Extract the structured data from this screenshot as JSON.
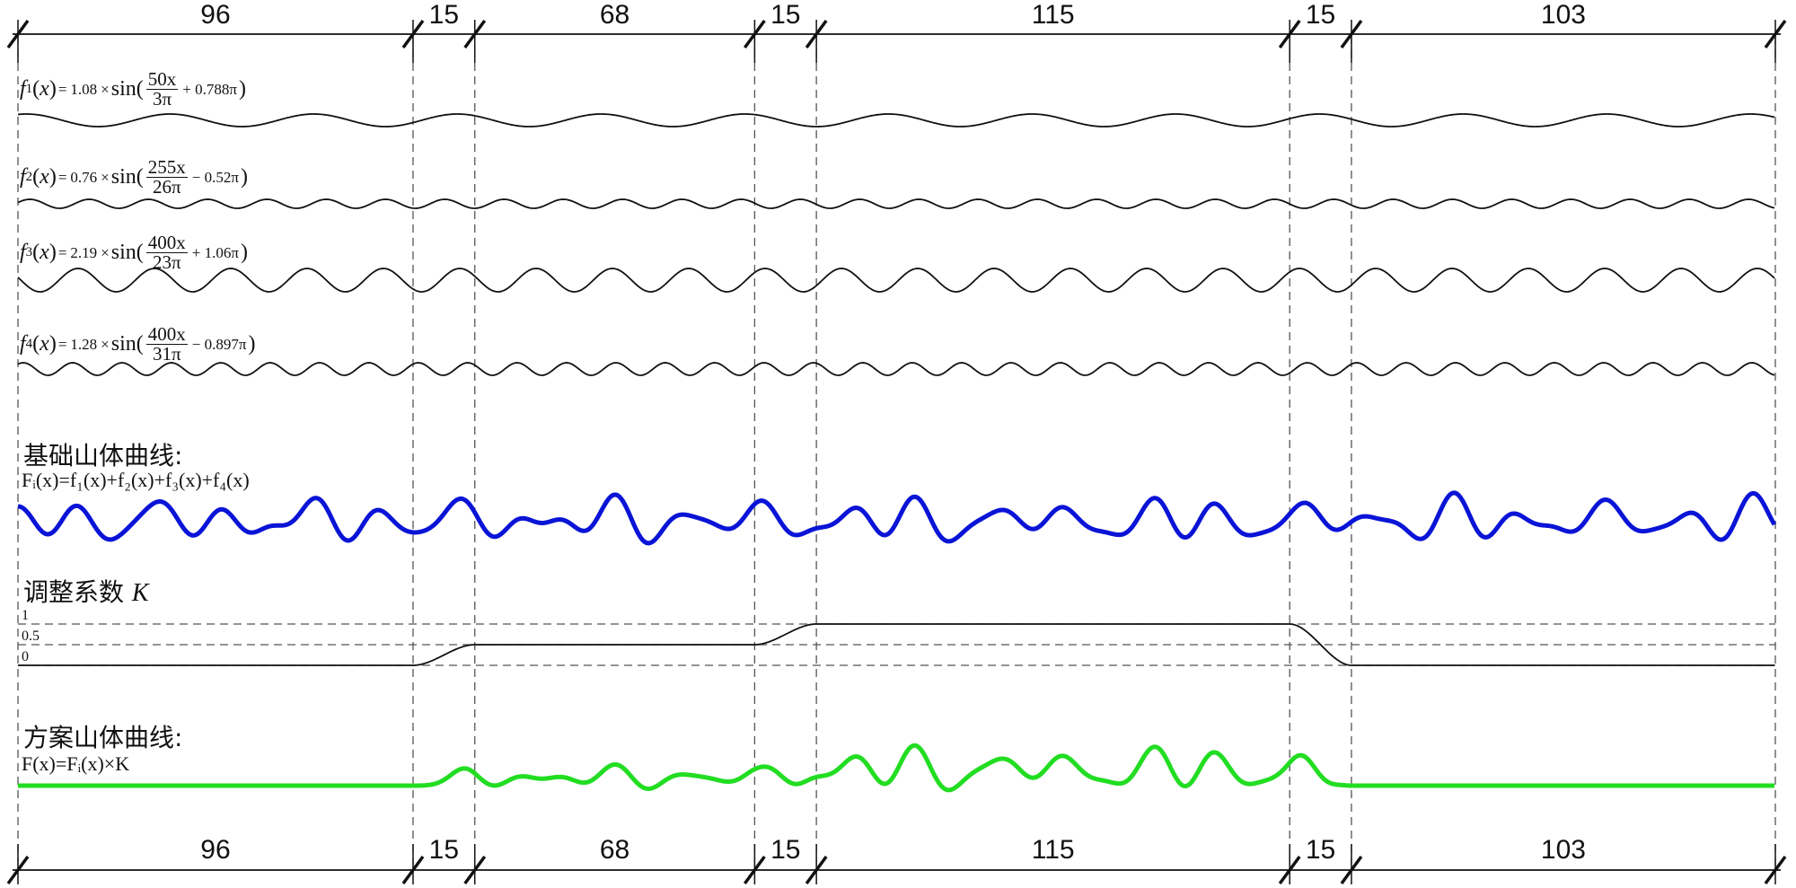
{
  "segments": [
    96,
    15,
    68,
    15,
    115,
    15,
    103
  ],
  "functions": [
    {
      "name": "f",
      "sub": "1",
      "coef": "1.08",
      "num": "50x",
      "den": "3π",
      "phase": "+ 0.788π"
    },
    {
      "name": "f",
      "sub": "2",
      "coef": "0.76",
      "num": "255x",
      "den": "26π",
      "phase": "− 0.52π"
    },
    {
      "name": "f",
      "sub": "3",
      "coef": "2.19",
      "num": "400x",
      "den": "23π",
      "phase": "+ 1.06π"
    },
    {
      "name": "f",
      "sub": "4",
      "coef": "1.28",
      "num": "400x",
      "den": "31π",
      "phase": "− 0.897π"
    }
  ],
  "base_curve": {
    "title": "基础山体曲线:",
    "formula": "Fᵢ(x)=f₁(x)+f₂(x)+f₃(x)+f₄(x)",
    "color": "#0a14d6"
  },
  "k_curve": {
    "title": "调整系数",
    "symbol": "K",
    "ticks": [
      "1",
      "0.5",
      "0"
    ],
    "levels": [
      0,
      0.5,
      0.5,
      1,
      1,
      0,
      0
    ]
  },
  "scheme_curve": {
    "title": "方案山体曲线:",
    "formula": "F(x)=Fᵢ(x)×K",
    "color": "#22dd22"
  }
}
